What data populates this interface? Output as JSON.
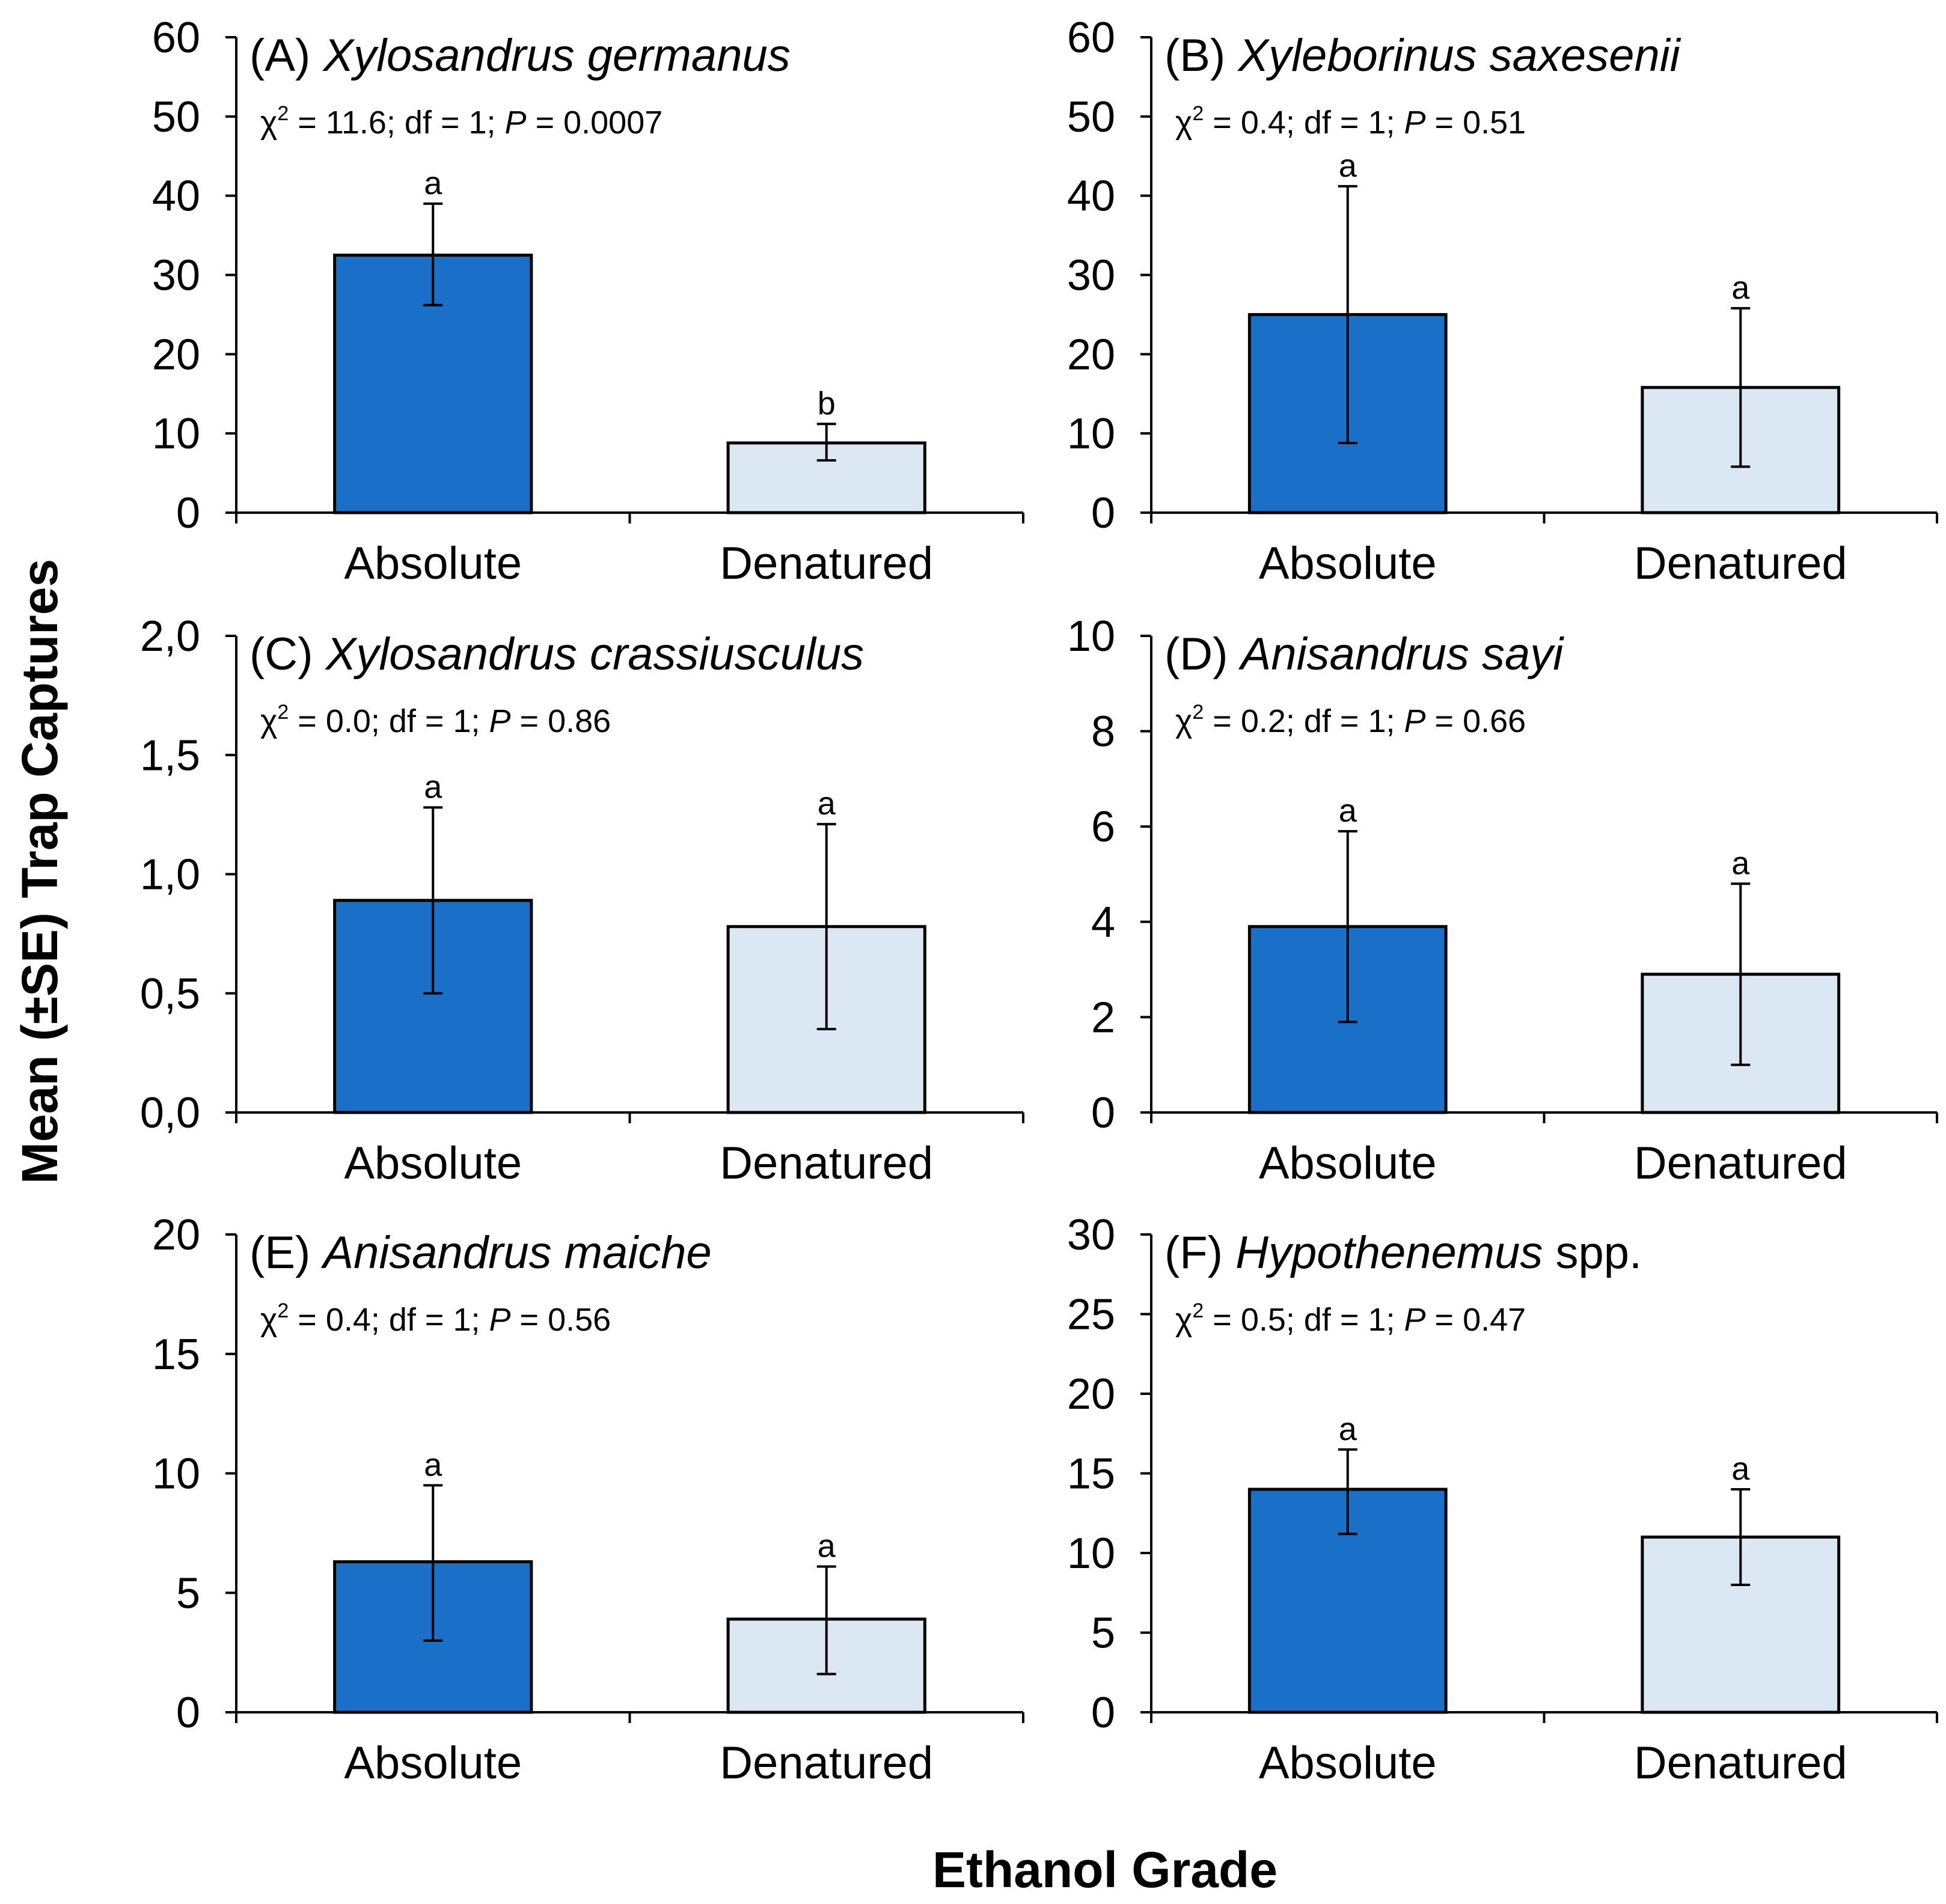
{
  "figure": {
    "ylabel": "Mean (±SE)  Trap Captures",
    "xlabel": "Ethanol Grade"
  },
  "colors": {
    "absolute": "#1a6fc8",
    "denatured": "#dce7f4"
  },
  "chart_data": [
    {
      "type": "bar",
      "panel": "(A)",
      "species": "Xylosandrus germanus",
      "species_suffix": "",
      "categories": [
        "Absolute",
        "Denatured"
      ],
      "values": [
        32.5,
        8.8
      ],
      "err_low": [
        26.2,
        6.6
      ],
      "err_high": [
        39.0,
        11.2
      ],
      "letters": [
        "a",
        "b"
      ],
      "ylim": [
        0,
        60
      ],
      "yticks": [
        "0",
        "10",
        "20",
        "30",
        "40",
        "50",
        "60"
      ],
      "stats": {
        "df": "11.6; df = 1; ",
        "p": " = 0.0007"
      }
    },
    {
      "type": "bar",
      "panel": "(B)",
      "species": "Xyleborinus saxesenii",
      "species_suffix": "",
      "categories": [
        "Absolute",
        "Denatured"
      ],
      "values": [
        25.0,
        15.8
      ],
      "err_low": [
        8.8,
        5.8
      ],
      "err_high": [
        41.2,
        25.8
      ],
      "letters": [
        "a",
        "a"
      ],
      "ylim": [
        0,
        60
      ],
      "yticks": [
        "0",
        "10",
        "20",
        "30",
        "40",
        "50",
        "60"
      ],
      "stats": {
        "df": "0.4; df = 1; ",
        "p": " = 0.51"
      }
    },
    {
      "type": "bar",
      "panel": "(C)",
      "species": "Xylosandrus crassiusculus",
      "species_suffix": "",
      "categories": [
        "Absolute",
        "Denatured"
      ],
      "values": [
        0.89,
        0.78
      ],
      "err_low": [
        0.5,
        0.35
      ],
      "err_high": [
        1.28,
        1.21
      ],
      "letters": [
        "a",
        "a"
      ],
      "ylim": [
        0,
        2
      ],
      "yticks": [
        "0,0",
        "0,5",
        "1,0",
        "1,5",
        "2,0"
      ],
      "stats": {
        "df": "0.0; df = 1; ",
        "p": " = 0.86"
      }
    },
    {
      "type": "bar",
      "panel": "(D)",
      "species": "Anisandrus sayi",
      "species_suffix": "",
      "categories": [
        "Absolute",
        "Denatured"
      ],
      "values": [
        3.9,
        2.9
      ],
      "err_low": [
        1.9,
        1.0
      ],
      "err_high": [
        5.9,
        4.8
      ],
      "letters": [
        "a",
        "a"
      ],
      "ylim": [
        0,
        10
      ],
      "yticks": [
        "0",
        "2",
        "4",
        "6",
        "8",
        "10"
      ],
      "stats": {
        "df": "0.2; df = 1; ",
        "p": " = 0.66"
      }
    },
    {
      "type": "bar",
      "panel": "(E)",
      "species": "Anisandrus maiche",
      "species_suffix": "",
      "categories": [
        "Absolute",
        "Denatured"
      ],
      "values": [
        6.3,
        3.9
      ],
      "err_low": [
        3.0,
        1.6
      ],
      "err_high": [
        9.5,
        6.1
      ],
      "letters": [
        "a",
        "a"
      ],
      "ylim": [
        0,
        20
      ],
      "yticks": [
        "0",
        "5",
        "10",
        "15",
        "20"
      ],
      "stats": {
        "df": "0.4; df = 1; ",
        "p": " = 0.56"
      }
    },
    {
      "type": "bar",
      "panel": "(F)",
      "species": "Hypothenemus",
      "species_suffix": " spp.",
      "categories": [
        "Absolute",
        "Denatured"
      ],
      "values": [
        14.0,
        11.0
      ],
      "err_low": [
        11.2,
        8.0
      ],
      "err_high": [
        16.5,
        14.0
      ],
      "letters": [
        "a",
        "a"
      ],
      "ylim": [
        0,
        30
      ],
      "yticks": [
        "0",
        "5",
        "10",
        "15",
        "20",
        "25",
        "30"
      ],
      "stats": {
        "df": "0.5; df = 1; ",
        "p": " = 0.47"
      }
    }
  ]
}
